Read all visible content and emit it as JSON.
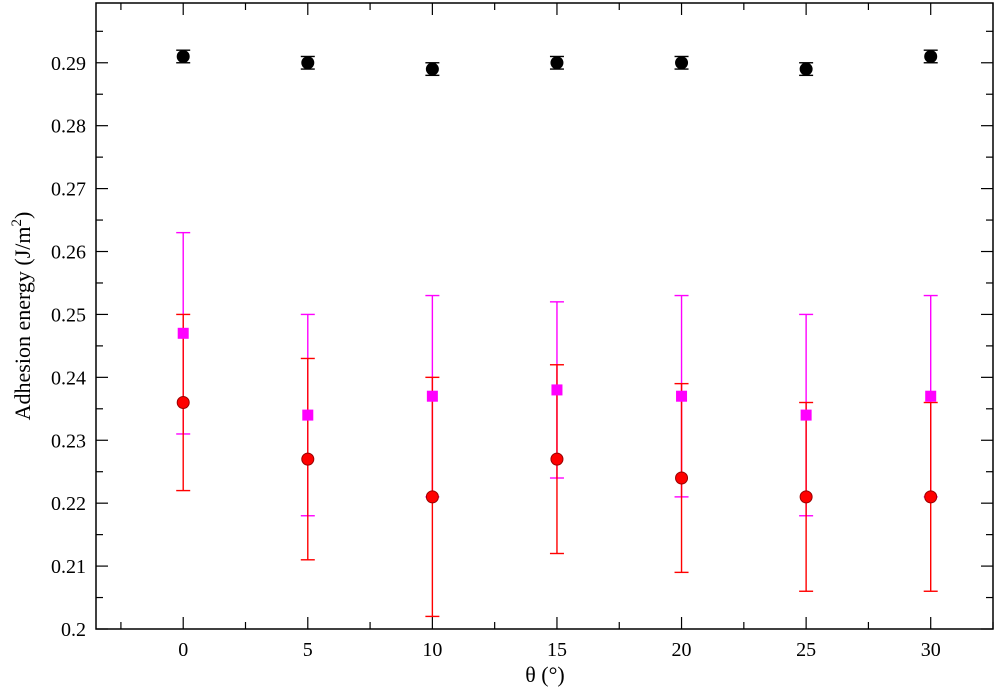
{
  "chart_data": {
    "type": "scatter",
    "xlabel": "θ (°)",
    "ylabel": "Adhesion energy (J/m",
    "ylabel_superscript": "2",
    "ylabel_close": ")",
    "xlim": [
      -3.5,
      32.5
    ],
    "ylim": [
      0.2,
      0.2995
    ],
    "x_ticks": [
      0,
      5,
      10,
      15,
      20,
      25,
      30
    ],
    "x_tick_labels": [
      "0",
      "5",
      "10",
      "15",
      "20",
      "25",
      "30"
    ],
    "y_ticks": [
      0.2,
      0.21,
      0.22,
      0.23,
      0.24,
      0.25,
      0.26,
      0.27,
      0.28,
      0.29
    ],
    "y_tick_labels": [
      "0.2",
      "0.21",
      "0.22",
      "0.23",
      "0.24",
      "0.25",
      "0.26",
      "0.27",
      "0.28",
      "0.29"
    ],
    "grid": false,
    "series": [
      {
        "marker": "circle",
        "color": "#000000",
        "error_color": "#000000",
        "x": [
          0,
          5,
          10,
          15,
          20,
          25,
          30
        ],
        "y": [
          0.291,
          0.29,
          0.289,
          0.29,
          0.29,
          0.289,
          0.291
        ],
        "err_low": [
          0.29,
          0.289,
          0.288,
          0.289,
          0.289,
          0.288,
          0.29
        ],
        "err_high": [
          0.292,
          0.291,
          0.29,
          0.291,
          0.291,
          0.29,
          0.292
        ]
      },
      {
        "marker": "square",
        "color": "#ff00ff",
        "error_color": "#ff00ff",
        "x": [
          0,
          5,
          10,
          15,
          20,
          25,
          30
        ],
        "y": [
          0.247,
          0.234,
          0.237,
          0.238,
          0.237,
          0.234,
          0.237
        ],
        "err_low": [
          0.231,
          0.218,
          0.221,
          0.224,
          0.221,
          0.218,
          0.221
        ],
        "err_high": [
          0.263,
          0.25,
          0.253,
          0.252,
          0.253,
          0.25,
          0.253
        ]
      },
      {
        "marker": "circle",
        "color": "#ff0000",
        "error_color": "#ff0000",
        "marker_stroke": "#990000",
        "x": [
          0,
          5,
          10,
          15,
          20,
          25,
          30
        ],
        "y": [
          0.236,
          0.227,
          0.221,
          0.227,
          0.224,
          0.221,
          0.221
        ],
        "err_low": [
          0.222,
          0.211,
          0.202,
          0.212,
          0.209,
          0.206,
          0.206
        ],
        "err_high": [
          0.25,
          0.243,
          0.24,
          0.242,
          0.239,
          0.236,
          0.236
        ]
      }
    ]
  }
}
